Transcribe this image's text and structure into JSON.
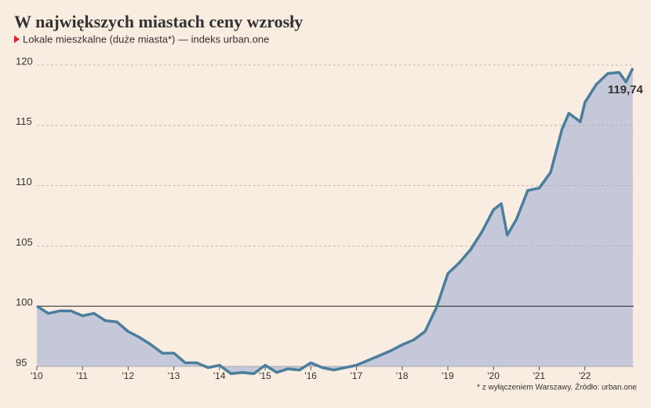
{
  "chart_data": {
    "type": "area",
    "title": "W największych miastach ceny wzrosły",
    "subtitle": "Lokale mieszkalne (duże miasta*) — indeks urban.one",
    "footnote": "* z wyłączeniem Warszawy. Źródło: urban.one",
    "end_label": "119,74",
    "x": [
      2010.0,
      2010.25,
      2010.5,
      2010.75,
      2011.0,
      2011.25,
      2011.5,
      2011.75,
      2012.0,
      2012.25,
      2012.5,
      2012.75,
      2013.0,
      2013.25,
      2013.5,
      2013.75,
      2014.0,
      2014.25,
      2014.5,
      2014.75,
      2015.0,
      2015.25,
      2015.5,
      2015.75,
      2016.0,
      2016.25,
      2016.5,
      2016.75,
      2017.0,
      2017.25,
      2017.5,
      2017.75,
      2018.0,
      2018.25,
      2018.5,
      2018.75,
      2019.0,
      2019.25,
      2019.5,
      2019.75,
      2020.0,
      2020.17,
      2020.3,
      2020.5,
      2020.75,
      2021.0,
      2021.25,
      2021.5,
      2021.65,
      2021.9,
      2022.0,
      2022.25,
      2022.5,
      2022.75,
      2022.9,
      2023.05
    ],
    "series": [
      {
        "name": "Lokale mieszkalne",
        "color": "#4a7e9c",
        "fill": "#c5c8d8",
        "values": [
          100.0,
          99.4,
          99.6,
          99.6,
          99.2,
          99.4,
          98.8,
          98.7,
          97.9,
          97.4,
          96.8,
          96.1,
          96.1,
          95.3,
          95.3,
          94.9,
          95.1,
          94.4,
          94.5,
          94.4,
          95.1,
          94.5,
          94.8,
          94.7,
          95.3,
          94.9,
          94.7,
          94.9,
          95.1,
          95.5,
          95.9,
          96.3,
          96.8,
          97.2,
          97.9,
          99.9,
          102.7,
          103.6,
          104.7,
          106.2,
          108.0,
          108.5,
          105.9,
          107.2,
          109.6,
          109.8,
          111.1,
          114.7,
          116.0,
          115.3,
          116.9,
          118.4,
          119.3,
          119.4,
          118.6,
          119.74
        ]
      }
    ],
    "xlim": [
      2010,
      2023.07
    ],
    "xticks": [
      {
        "value": 2010,
        "label": "'10"
      },
      {
        "value": 2011,
        "label": "'11"
      },
      {
        "value": 2012,
        "label": "'12"
      },
      {
        "value": 2013,
        "label": "'13"
      },
      {
        "value": 2014,
        "label": "'14"
      },
      {
        "value": 2015,
        "label": "'15"
      },
      {
        "value": 2016,
        "label": "'16"
      },
      {
        "value": 2017,
        "label": "'17"
      },
      {
        "value": 2018,
        "label": "'18"
      },
      {
        "value": 2019,
        "label": "'19"
      },
      {
        "value": 2020,
        "label": "'20"
      },
      {
        "value": 2021,
        "label": "'21"
      },
      {
        "value": 2022,
        "label": "'22"
      }
    ],
    "ylim": [
      95,
      120
    ],
    "yticks": [
      95,
      100,
      105,
      110,
      115,
      120
    ],
    "reference_line": 100,
    "grid": true
  }
}
